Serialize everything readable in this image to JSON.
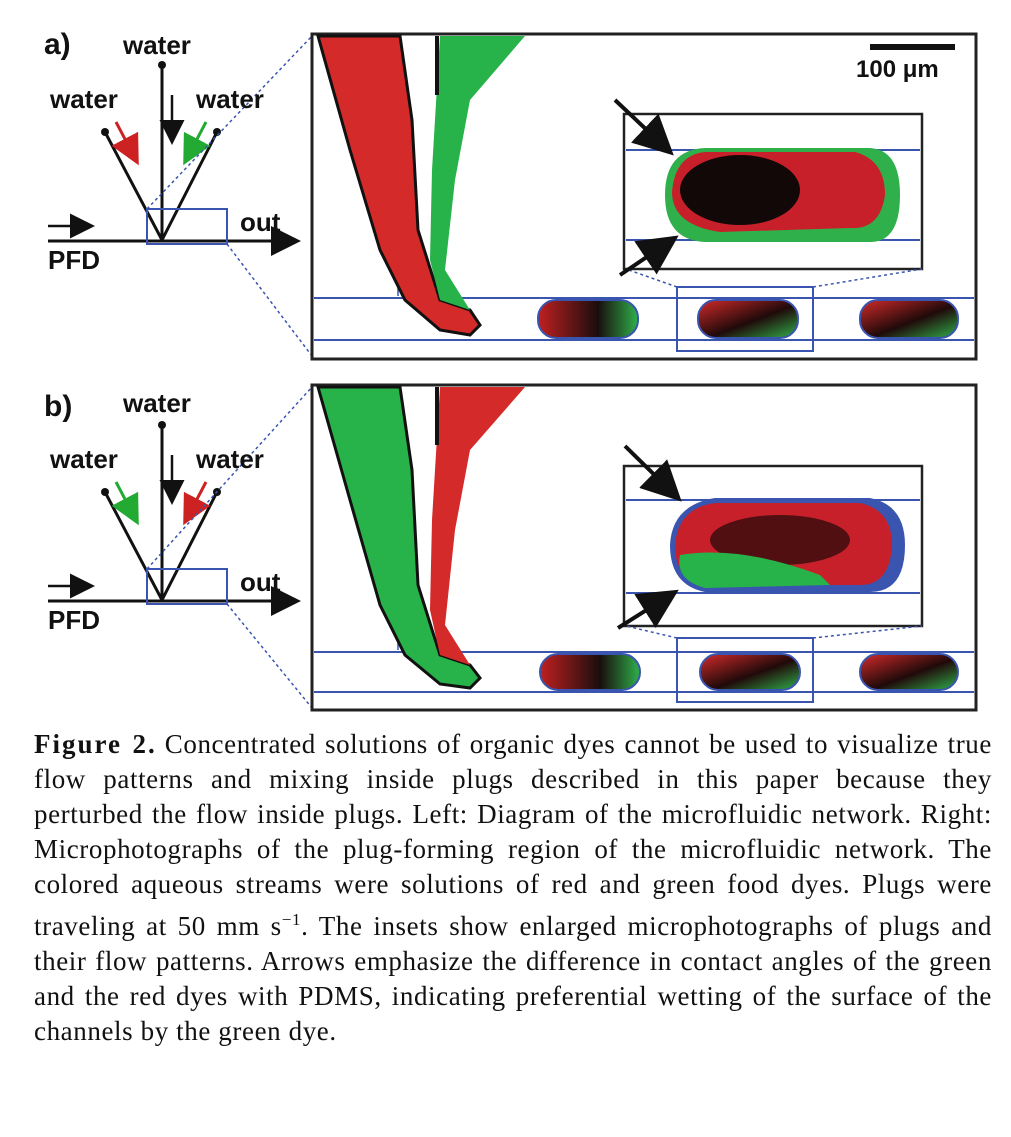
{
  "panels": [
    {
      "label": "a)",
      "diagram": {
        "top": "water",
        "left": "water",
        "right": "water",
        "inlet": "PFD",
        "outlet": "out",
        "left_arrow_color": "#cc2222",
        "right_arrow_color": "#22aa33"
      },
      "scale_bar": "100 μm",
      "photo_desc_colors": {
        "left_stream": "#d42a2a",
        "right_stream": "#27b34a"
      }
    },
    {
      "label": "b)",
      "diagram": {
        "top": "water",
        "left": "water",
        "right": "water",
        "inlet": "PFD",
        "outlet": "out",
        "left_arrow_color": "#22aa33",
        "right_arrow_color": "#cc2222"
      },
      "photo_desc_colors": {
        "left_stream": "#27b34a",
        "right_stream": "#d42a2a"
      }
    }
  ],
  "caption": {
    "title": "Figure 2.",
    "superscript": "−1",
    "text_before_sup": "Concentrated solutions of organic dyes cannot be used to visualize true flow patterns and mixing inside plugs described in this paper because they perturbed the flow inside plugs. Left: Diagram of the microfluidic network. Right: Microphotographs of the plug-forming region of the microfluidic network. The colored aqueous streams were solutions of red and green food dyes. Plugs were traveling at 50 mm s",
    "text_after_sup": ". The insets show enlarged microphotographs of plugs and their flow patterns. Arrows emphasize the difference in contact angles of the green and the red dyes with PDMS, indicating preferential wetting of the surface of the channels by the green dye."
  },
  "colors": {
    "red_dye": "#d42a2a",
    "green_dye": "#27b34a",
    "channel_blue": "#3a55b0",
    "frame": "#222222"
  }
}
